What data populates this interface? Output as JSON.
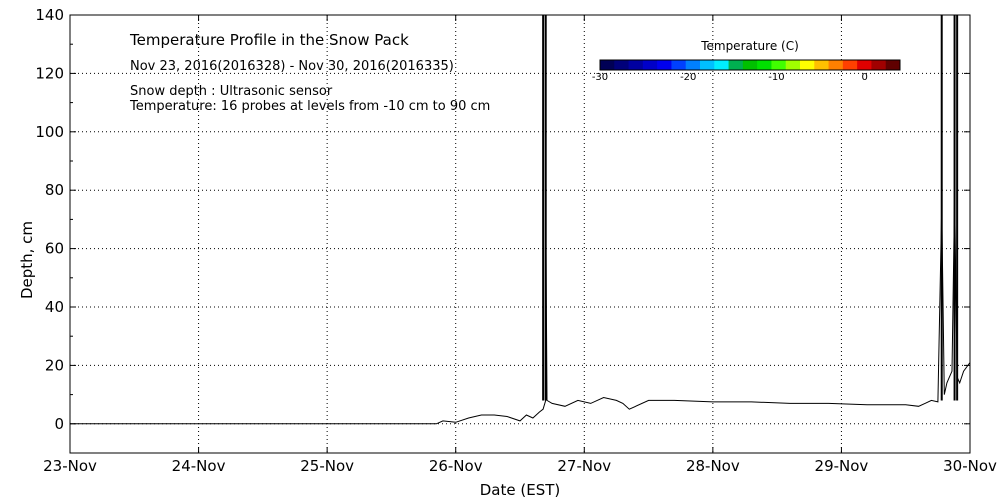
{
  "chart_data": {
    "type": "line",
    "title": "Temperature Profile in the Snow Pack",
    "subtitle": "Nov 23, 2016(2016328) - Nov 30, 2016(2016335)",
    "annotations": [
      "Snow depth : Ultrasonic sensor",
      "Temperature: 16 probes at levels from -10 cm to 90 cm"
    ],
    "xlabel": "Date (EST)",
    "ylabel": "Depth, cm",
    "xlim": [
      0,
      7
    ],
    "ylim": [
      -10,
      140
    ],
    "x_ticks": [
      {
        "x": 0,
        "label": "23-Nov"
      },
      {
        "x": 1,
        "label": "24-Nov"
      },
      {
        "x": 2,
        "label": "25-Nov"
      },
      {
        "x": 3,
        "label": "26-Nov"
      },
      {
        "x": 4,
        "label": "27-Nov"
      },
      {
        "x": 5,
        "label": "28-Nov"
      },
      {
        "x": 6,
        "label": "29-Nov"
      },
      {
        "x": 7,
        "label": "30-Nov"
      }
    ],
    "y_ticks": [
      0,
      20,
      40,
      60,
      80,
      100,
      120,
      140
    ],
    "grid": true,
    "colorbar": {
      "title": "Temperature (C)",
      "range": [
        -30,
        4
      ],
      "ticks": [
        -30,
        -20,
        -10,
        0
      ],
      "colors": [
        "#000055",
        "#00007a",
        "#0000a0",
        "#0000c8",
        "#0000ee",
        "#0040ff",
        "#0080ff",
        "#00c0ff",
        "#00eeff",
        "#00b050",
        "#00c000",
        "#00e000",
        "#40ff00",
        "#a0ff00",
        "#ffff00",
        "#ffc000",
        "#ff8000",
        "#ff4000",
        "#e00000",
        "#a00000",
        "#600000"
      ]
    },
    "series": [
      {
        "values_x": [
          0,
          2.85,
          2.9,
          3.0,
          3.1,
          3.2,
          3.3,
          3.4,
          3.5,
          3.55,
          3.6,
          3.65,
          3.68,
          3.7,
          3.7,
          3.71,
          3.75,
          3.85,
          3.95,
          4.05,
          4.15,
          4.25,
          4.3,
          4.35,
          4.5,
          4.7,
          5.0,
          5.3,
          5.6,
          5.9,
          6.2,
          6.5,
          6.6,
          6.65,
          6.7,
          6.75,
          6.78,
          6.8,
          6.82,
          6.84,
          6.86,
          6.88,
          6.9,
          6.92,
          6.95,
          7.0
        ],
        "values_y": [
          0,
          0,
          1,
          0.5,
          2,
          3,
          3,
          2.5,
          1,
          3,
          2,
          4,
          5,
          8,
          74,
          8,
          7,
          6,
          8,
          7,
          9,
          8,
          7,
          5,
          8,
          8,
          7.5,
          7.5,
          7,
          7,
          6.5,
          6.5,
          6,
          7,
          8,
          7.5,
          74,
          10,
          14,
          16,
          18,
          78,
          16,
          14,
          18,
          21
        ]
      }
    ],
    "spikes": [
      {
        "x": 3.68,
        "y_top": 140
      },
      {
        "x": 3.7,
        "y_top": 140
      },
      {
        "x": 6.78,
        "y_top": 140
      },
      {
        "x": 6.88,
        "y_top": 140
      },
      {
        "x": 6.9,
        "y_top": 140
      }
    ]
  }
}
